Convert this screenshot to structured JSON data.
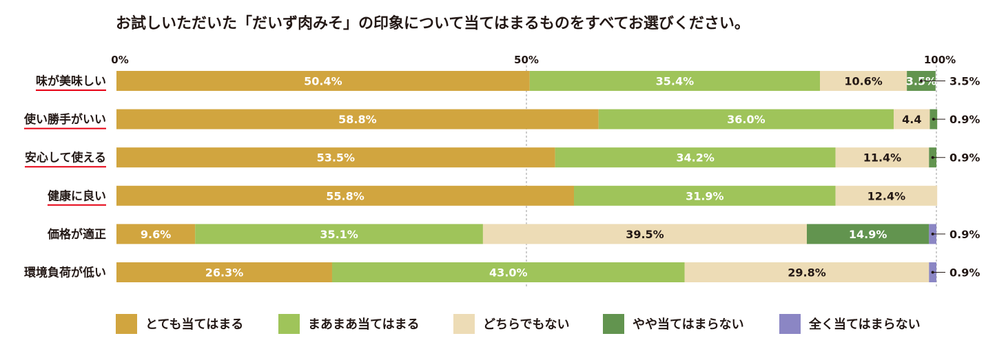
{
  "chart_data": {
    "type": "bar",
    "orientation": "horizontal",
    "stacked": true,
    "title": "お試しいただいた「だいず肉みそ」の印象について当てはまるものをすべてお選びください。",
    "xlim": [
      0,
      100
    ],
    "x_ticks": [
      {
        "value": 0,
        "label": "0%"
      },
      {
        "value": 50,
        "label": "50%"
      },
      {
        "value": 100,
        "label": "100%"
      }
    ],
    "categories": [
      "味が美味しい",
      "使い勝手がいい",
      "安心して使える",
      "健康に良い",
      "価格が適正",
      "環境負荷が低い"
    ],
    "underlined_categories": [
      true,
      true,
      true,
      true,
      false,
      false
    ],
    "series": [
      {
        "name": "とても当てはまる",
        "color": "#d1a53f",
        "label_color": "#ffffff",
        "values": [
          50.4,
          58.8,
          53.5,
          55.8,
          9.6,
          26.3
        ],
        "labels": [
          "50.4%",
          "58.8%",
          "53.5%",
          "55.8%",
          "9.6%",
          "26.3%"
        ]
      },
      {
        "name": "まあまあ当てはまる",
        "color": "#9fc45a",
        "label_color": "#ffffff",
        "values": [
          35.4,
          36.0,
          34.2,
          31.9,
          35.1,
          43.0
        ],
        "labels": [
          "35.4%",
          "36.0%",
          "34.2%",
          "31.9%",
          "35.1%",
          "43.0%"
        ]
      },
      {
        "name": "どちらでもない",
        "color": "#eddcb6",
        "label_color": "#231815",
        "values": [
          10.6,
          4.4,
          11.4,
          12.4,
          39.5,
          29.8
        ],
        "labels": [
          "10.6%",
          "4.4",
          "11.4%",
          "12.4%",
          "39.5%",
          "29.8%"
        ]
      },
      {
        "name": "やや当てはまらない",
        "color": "#62944f",
        "label_color": "#ffffff",
        "values": [
          3.5,
          0.9,
          0.9,
          0,
          14.9,
          0
        ],
        "labels": [
          "3.5%",
          "0.9%",
          "0.9%",
          "",
          "14.9%",
          ""
        ]
      },
      {
        "name": "全く当てはまらない",
        "color": "#8b86c4",
        "label_color": "#ffffff",
        "values": [
          0,
          0,
          0,
          0,
          0.9,
          0.9
        ],
        "labels": [
          "",
          "",
          "",
          "",
          "0.9%",
          "0.9%"
        ]
      }
    ],
    "callouts": [
      "3.5%",
      "0.9%",
      "0.9%",
      "",
      "0.9%",
      "0.9%"
    ],
    "grid": "dashed vertical at 50% and 100%",
    "legend_position": "bottom"
  }
}
